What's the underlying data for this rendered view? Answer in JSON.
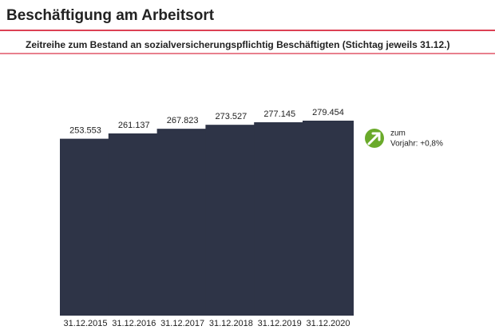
{
  "chart_data": {
    "type": "bar",
    "title": "Beschäftigung am Arbeitsort",
    "subtitle": "Zeitreihe zum Bestand an sozialversicherungspflichtig Beschäftigten (Stichtag jeweils 31.12.)",
    "categories": [
      "31.12.2015",
      "31.12.2016",
      "31.12.2017",
      "31.12.2018",
      "31.12.2019",
      "31.12.2020"
    ],
    "values": [
      253553,
      261137,
      267823,
      273527,
      277145,
      279454
    ],
    "value_labels": [
      "253.553",
      "261.137",
      "267.823",
      "273.527",
      "277.145",
      "279.454"
    ],
    "color": "#2e3447",
    "annotation": [
      "zum",
      "Vorjahr: +0,8%"
    ]
  }
}
